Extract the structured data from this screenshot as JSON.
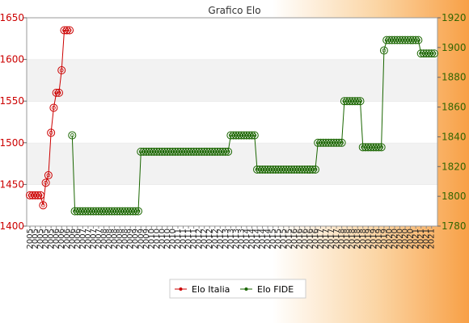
{
  "chart_data": {
    "type": "line",
    "title": "Grafico Elo",
    "y_left_lim": [
      1400,
      1650
    ],
    "y_left_ticks": [
      1400,
      1450,
      1500,
      1550,
      1600,
      1650
    ],
    "y_right_lim": [
      1780,
      1920
    ],
    "y_right_ticks": [
      1780,
      1800,
      1820,
      1840,
      1860,
      1880,
      1900,
      1920
    ],
    "x_tick_labels": [
      "2005",
      "2006",
      "2007",
      "2008",
      "2009",
      "2010",
      "2011",
      "2012",
      "2013",
      "2014",
      "2015",
      "2016",
      "2017",
      "2018",
      "2019",
      "2020",
      "2021"
    ],
    "legend_position": "bottom",
    "background_bands": true,
    "series": [
      {
        "name": "Elo Italia",
        "axis": "left",
        "color": "#cc0000",
        "marker_color": "#cc0000",
        "values": [
          1437,
          1437,
          1437,
          1437,
          1437,
          1425,
          1452,
          1461,
          1512,
          1542,
          1560,
          1560,
          1587,
          1635,
          1635,
          1635
        ]
      },
      {
        "name": "Elo FIDE",
        "axis": "right",
        "color": "#1a6600",
        "marker_color": "#1a6600",
        "x_start_index": 16,
        "values": [
          1841,
          1790,
          1790,
          1790,
          1790,
          1790,
          1790,
          1790,
          1790,
          1790,
          1790,
          1790,
          1790,
          1790,
          1790,
          1790,
          1790,
          1790,
          1790,
          1790,
          1790,
          1790,
          1790,
          1790,
          1790,
          1790,
          1830,
          1830,
          1830,
          1830,
          1830,
          1830,
          1830,
          1830,
          1830,
          1830,
          1830,
          1830,
          1830,
          1830,
          1830,
          1830,
          1830,
          1830,
          1830,
          1830,
          1830,
          1830,
          1830,
          1830,
          1830,
          1830,
          1830,
          1830,
          1830,
          1830,
          1830,
          1830,
          1830,
          1830,
          1841,
          1841,
          1841,
          1841,
          1841,
          1841,
          1841,
          1841,
          1841,
          1841,
          1818,
          1818,
          1818,
          1818,
          1818,
          1818,
          1818,
          1818,
          1818,
          1818,
          1818,
          1818,
          1818,
          1818,
          1818,
          1818,
          1818,
          1818,
          1818,
          1818,
          1818,
          1818,
          1818,
          1836,
          1836,
          1836,
          1836,
          1836,
          1836,
          1836,
          1836,
          1836,
          1836,
          1864,
          1864,
          1864,
          1864,
          1864,
          1864,
          1864,
          1833,
          1833,
          1833,
          1833,
          1833,
          1833,
          1833,
          1833,
          1898,
          1905,
          1905,
          1905,
          1905,
          1905,
          1905,
          1905,
          1905,
          1905,
          1905,
          1905,
          1905,
          1905,
          1896,
          1896,
          1896,
          1896,
          1896,
          1896
        ]
      }
    ]
  }
}
